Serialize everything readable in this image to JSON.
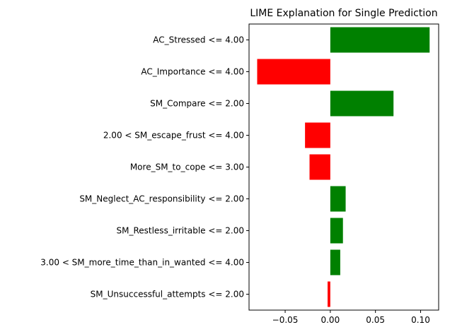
{
  "chart_data": {
    "type": "bar",
    "orientation": "horizontal",
    "title": "LIME Explanation for Single Prediction",
    "xlabel": "",
    "ylabel": "",
    "xlim": [
      -0.09,
      0.12
    ],
    "xticks": [
      -0.05,
      0.0,
      0.05,
      0.1
    ],
    "xtick_labels": [
      "−0.05",
      "0.00",
      "0.05",
      "0.10"
    ],
    "grid": false,
    "legend": "none",
    "colors": {
      "positive": "#008000",
      "negative": "#ff0000"
    },
    "categories": [
      "AC_Stressed <= 4.00",
      "AC_Importance <= 4.00",
      "SM_Compare <= 2.00",
      "2.00 < SM_escape_frust <= 4.00",
      "More_SM_to_cope <= 3.00",
      "SM_Neglect_AC_responsibility <= 2.00",
      "SM_Restless_irritable <= 2.00",
      "3.00 < SM_more_time_than_in_wanted <= 4.00",
      "SM_Unsuccessful_attempts <= 2.00"
    ],
    "values": [
      0.11,
      -0.081,
      0.07,
      -0.028,
      -0.023,
      0.017,
      0.014,
      0.011,
      -0.003
    ]
  }
}
